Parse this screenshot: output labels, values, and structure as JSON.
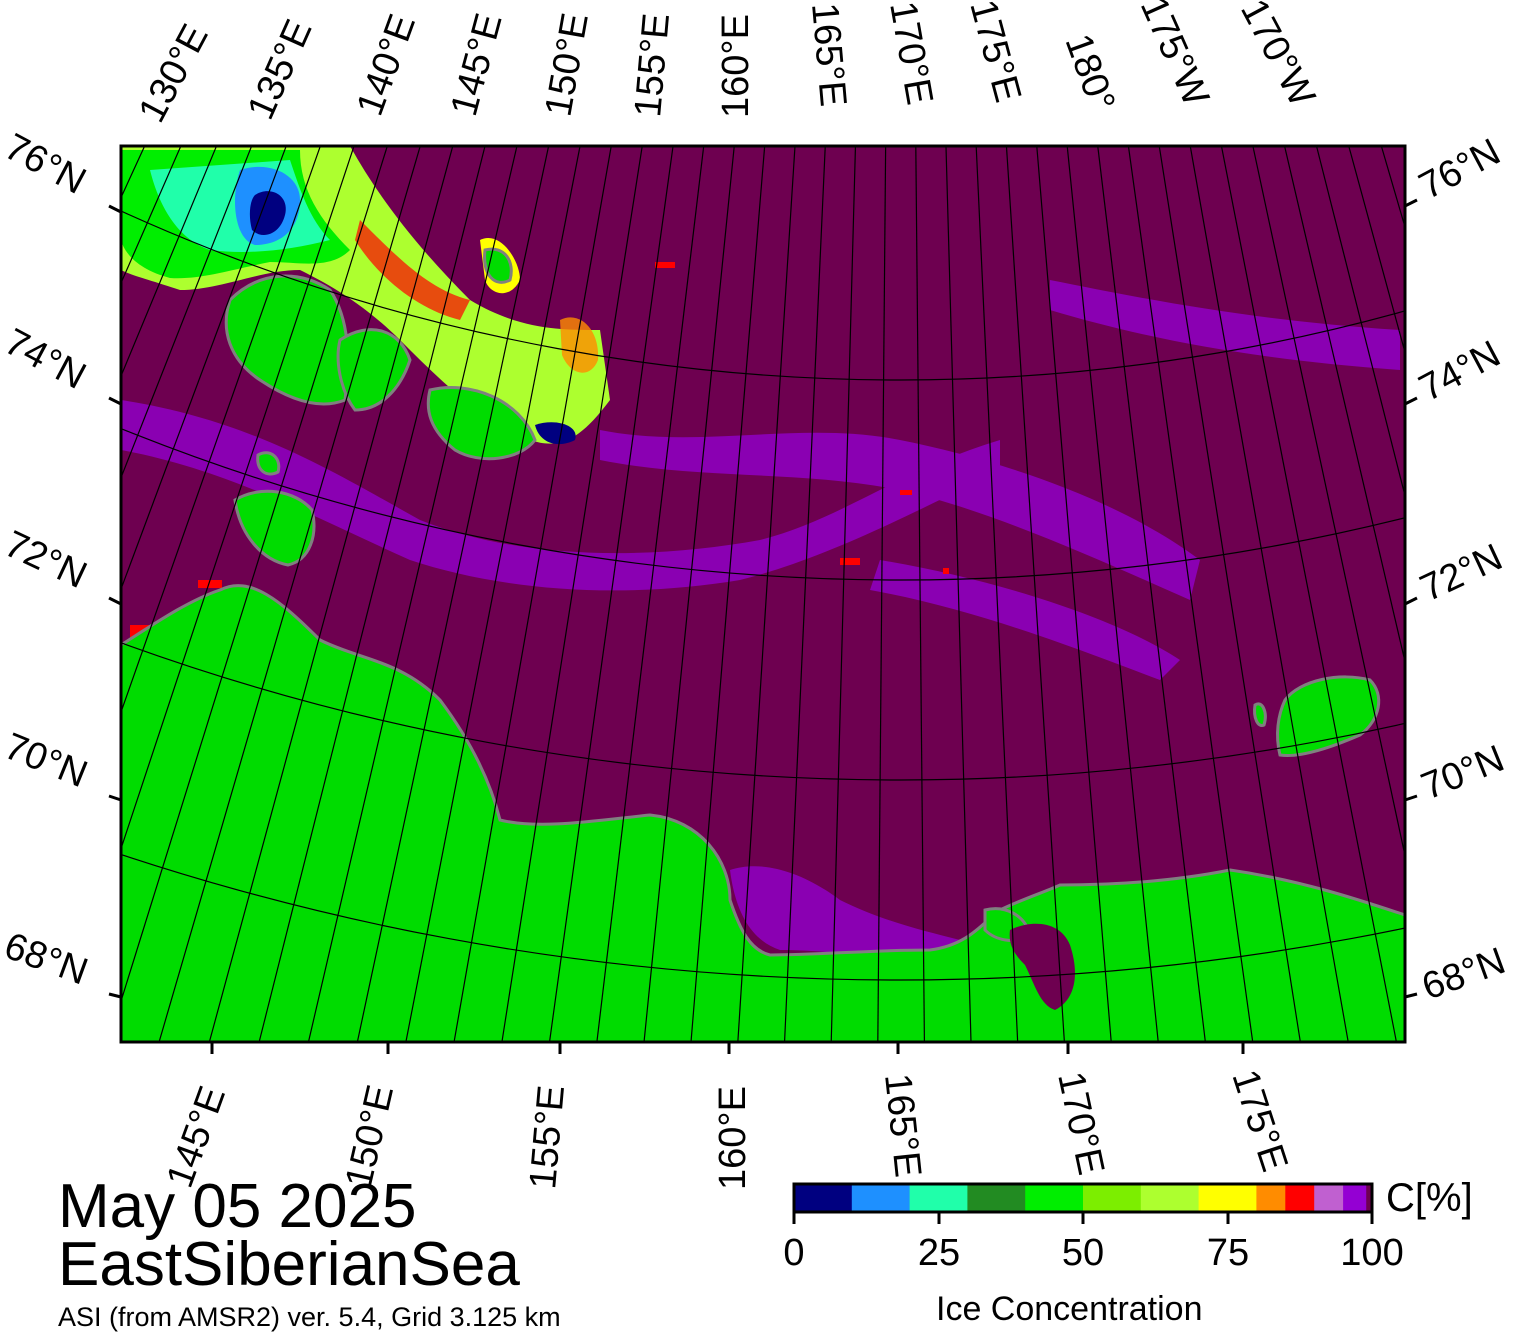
{
  "map": {
    "date": "May 05 2025",
    "region": "EastSiberianSea",
    "product": "ASI (from AMSR2) ver. 5.4,  Grid 3.125 km",
    "colors": {
      "ocean_full_ice": "#6e0050",
      "land": "#00dc00",
      "coast_shadow": "#808080",
      "grid": "#000000"
    },
    "top_lon_labels": [
      "130°E",
      "135°E",
      "140°E",
      "145°E",
      "150°E",
      "155°E",
      "160°E",
      "165°E",
      "170°E",
      "175°E",
      "180°",
      "175°W",
      "170°W"
    ],
    "bottom_lon_labels": [
      "145°E",
      "150°E",
      "155°E",
      "160°E",
      "165°E",
      "170°E",
      "175°E"
    ],
    "left_lat_labels": [
      "76°N",
      "74°N",
      "72°N",
      "70°N",
      "68°N"
    ],
    "right_lat_labels": [
      "76°N",
      "74°N",
      "72°N",
      "70°N",
      "68°N"
    ]
  },
  "colorbar": {
    "title": "Ice Concentration",
    "unit": "C[%]",
    "ticks": [
      "0",
      "25",
      "50",
      "75",
      "100"
    ],
    "colors": [
      "#000080",
      "#1e90ff",
      "#20ffaa",
      "#228b22",
      "#00ee00",
      "#7cee00",
      "#adff2f",
      "#ffff00",
      "#ff8c00",
      "#ff0000",
      "#c060d0",
      "#9400d3",
      "#6e0050"
    ]
  }
}
